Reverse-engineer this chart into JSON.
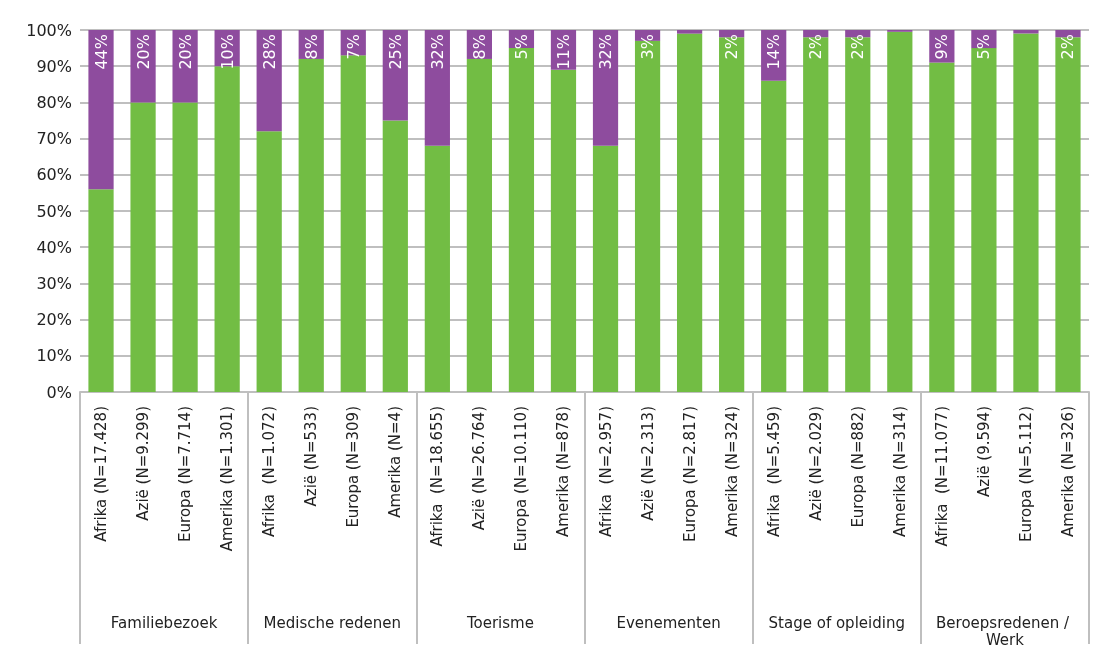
{
  "chart_data": {
    "type": "bar",
    "stacked": true,
    "categories": [
      "Afrika (N=17.428)",
      "Azië (N=9.299)",
      "Europa (N=7.714)",
      "Amerika (N=1.301)",
      "Afrika  (N=1.072)",
      "Azië (N=533)",
      "Europa (N=309)",
      "Amerika (N=4)",
      "Afrika  (N=18.655)",
      "Azië (N=26.764)",
      "Europa (N=10.110)",
      "Amerika (N=878)",
      "Afrika  (N=2.957)",
      "Azië (N=2.313)",
      "Europa (N=2.817)",
      "Amerika (N=324)",
      "Afrika  (N=5.459)",
      "Azië (N=2.029)",
      "Europa (N=882)",
      "Amerika (N=314)",
      "Afrika  (N=11.077)",
      "Azië (9.594)",
      "Europa (N=5.112)",
      "Amerika (N=326)"
    ],
    "series": [
      {
        "color": "#72bd44",
        "values": [
          56,
          80,
          80,
          90,
          72,
          92,
          93,
          75,
          68,
          92,
          95,
          89,
          68,
          97,
          99,
          98,
          86,
          98,
          98,
          99.5,
          91,
          95,
          99,
          98
        ]
      },
      {
        "color": "#8e4c9e",
        "values": [
          44,
          20,
          20,
          10,
          28,
          8,
          7,
          25,
          32,
          8,
          5,
          11,
          32,
          3,
          1,
          2,
          14,
          2,
          2,
          0.5,
          9,
          5,
          1,
          2
        ],
        "value_labels": [
          "44%",
          "20%",
          "20%",
          "10%",
          "28%",
          "8%",
          "7%",
          "25%",
          "32%",
          "8%",
          "5%",
          "11%",
          "32%",
          "3%",
          null,
          "2%",
          "14%",
          "2%",
          "2%",
          null,
          "9%",
          "5%",
          null,
          "2%"
        ]
      }
    ],
    "annotations": [
      "Familiebezoek",
      "Medische redenen",
      "Toerisme",
      "Evenementen",
      "Stage of opleiding",
      "Beroepsredenen / Werk"
    ],
    "ylim": [
      0,
      100
    ],
    "yticks": [
      {
        "value": 0,
        "label": "0%"
      },
      {
        "value": 10,
        "label": "10%"
      },
      {
        "value": 20,
        "label": "20%"
      },
      {
        "value": 30,
        "label": "30%"
      },
      {
        "value": 40,
        "label": "40%"
      },
      {
        "value": 50,
        "label": "50%"
      },
      {
        "value": 60,
        "label": "60%"
      },
      {
        "value": 70,
        "label": "70%"
      },
      {
        "value": 80,
        "label": "80%"
      },
      {
        "value": 90,
        "label": "90%"
      },
      {
        "value": 100,
        "label": "100%"
      }
    ],
    "grid": "y"
  }
}
